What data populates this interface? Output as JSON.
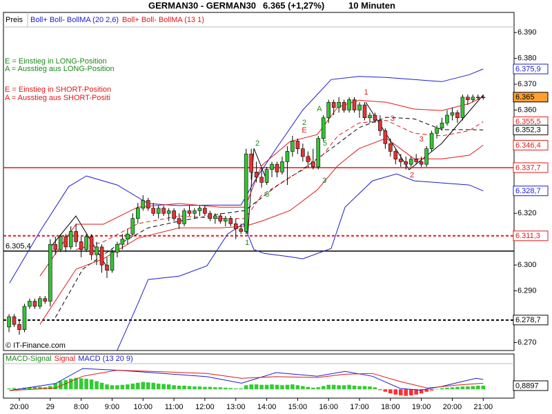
{
  "chart_data": {
    "type": "candlestick",
    "title": "GERMAN30 - GERMAN30",
    "quote": "6.365 (+1,27%)",
    "interval": "10 Minuten",
    "price_legend": "Preis",
    "copyright": "© IT-Finance.com",
    "up_color": "#33c433",
    "down_color": "#e23434",
    "categories": [
      null,
      null,
      "20:00",
      null,
      null,
      null,
      null,
      null,
      "29",
      null,
      null,
      null,
      null,
      null,
      "8:00",
      null,
      null,
      null,
      null,
      null,
      "9:00",
      null,
      null,
      null,
      null,
      null,
      "10:00",
      null,
      null,
      null,
      null,
      null,
      "11:00",
      null,
      null,
      null,
      null,
      null,
      "12:00",
      null,
      null,
      null,
      null,
      null,
      "13:00",
      null,
      null,
      null,
      null,
      null,
      "14:00",
      null,
      null,
      null,
      null,
      null,
      "15:00",
      null,
      null,
      null,
      null,
      null,
      "16:00",
      null,
      null,
      null,
      null,
      null,
      "17:00",
      null,
      null,
      null,
      null,
      null,
      "18:00",
      null,
      null,
      null,
      null,
      null,
      "19:00",
      null,
      null,
      null,
      null,
      null,
      "20:00",
      null,
      null,
      null,
      null,
      null,
      "21:00"
    ],
    "open": [
      6276,
      6280,
      6277,
      6275,
      6284,
      6286,
      6284,
      6287,
      6286,
      6308,
      6306,
      6311,
      6307,
      6313,
      6309,
      6306,
      6311,
      6304,
      6307,
      6300,
      6298,
      6305,
      6308,
      6310,
      6312,
      6318,
      6322,
      6325,
      6322,
      6320,
      6322,
      6320,
      6321,
      6318,
      6316,
      6321,
      6320,
      6321,
      6322,
      6320,
      6318,
      6319,
      6317,
      6318,
      6316,
      6314,
      6313,
      6343,
      6336,
      6334,
      6332,
      6337,
      6339,
      6336,
      6340,
      6344,
      6348,
      6345,
      6342,
      6340,
      6338,
      6349,
      6357,
      6363,
      6361,
      6363,
      6360,
      6364,
      6360,
      6362,
      6357,
      6358,
      6356,
      6352,
      6347,
      6344,
      6341,
      6340,
      6339,
      6341,
      6340,
      6339,
      6345,
      6351,
      6353,
      6355,
      6358,
      6359,
      6357,
      6365,
      6364,
      6365,
      6365
    ],
    "high": [
      6281,
      6281,
      6279,
      6285,
      6287,
      6287,
      6288,
      6288,
      6310,
      6311,
      6312,
      6312,
      6315,
      6316,
      6311,
      6312,
      6312,
      6309,
      6308,
      6303,
      6306,
      6309,
      6312,
      6314,
      6320,
      6324,
      6327,
      6326,
      6324,
      6323,
      6323,
      6322,
      6322,
      6320,
      6322,
      6323,
      6322,
      6323,
      6323,
      6321,
      6320,
      6320,
      6319,
      6319,
      6318,
      6316,
      6345,
      6345,
      6340,
      6338,
      6338,
      6340,
      6340,
      6342,
      6346,
      6350,
      6349,
      6347,
      6344,
      6345,
      6350,
      6358,
      6364,
      6364,
      6365,
      6364,
      6365,
      6365,
      6363,
      6363,
      6359,
      6359,
      6358,
      6353,
      6349,
      6345,
      6343,
      6342,
      6342,
      6343,
      6342,
      6346,
      6352,
      6354,
      6357,
      6360,
      6361,
      6360,
      6366,
      6366,
      6366,
      6366,
      6366
    ],
    "low": [
      6274,
      6276,
      6273,
      6274,
      6283,
      6283,
      6283,
      6285,
      6284,
      6304,
      6305,
      6305,
      6306,
      6307,
      6303,
      6305,
      6302,
      6300,
      6297,
      6295,
      6297,
      6303,
      6306,
      6308,
      6311,
      6316,
      6321,
      6321,
      6319,
      6318,
      6319,
      6317,
      6317,
      6314,
      6315,
      6319,
      6318,
      6319,
      6319,
      6317,
      6316,
      6316,
      6315,
      6315,
      6310,
      6312,
      6312,
      6333,
      6332,
      6330,
      6331,
      6334,
      6334,
      6335,
      6331,
      6342,
      6343,
      6340,
      6338,
      6337,
      6337,
      6348,
      6355,
      6358,
      6359,
      6359,
      6359,
      6359,
      6357,
      6356,
      6355,
      6355,
      6350,
      6345,
      6342,
      6339,
      6338,
      6337,
      6338,
      6339,
      6338,
      6338,
      6344,
      6349,
      6352,
      6354,
      6356,
      6355,
      6356,
      6362,
      6363,
      6364,
      6364
    ],
    "close": [
      6280,
      6277,
      6275,
      6284,
      6286,
      6284,
      6287,
      6286,
      6308,
      6306,
      6311,
      6307,
      6313,
      6309,
      6306,
      6311,
      6304,
      6307,
      6300,
      6298,
      6305,
      6308,
      6310,
      6312,
      6318,
      6322,
      6325,
      6322,
      6320,
      6322,
      6320,
      6321,
      6318,
      6316,
      6321,
      6320,
      6321,
      6322,
      6320,
      6318,
      6319,
      6317,
      6318,
      6316,
      6314,
      6313,
      6343,
      6336,
      6334,
      6332,
      6337,
      6339,
      6336,
      6340,
      6344,
      6348,
      6345,
      6342,
      6340,
      6338,
      6349,
      6357,
      6363,
      6361,
      6363,
      6360,
      6364,
      6360,
      6362,
      6357,
      6358,
      6356,
      6352,
      6347,
      6344,
      6341,
      6340,
      6339,
      6341,
      6340,
      6339,
      6345,
      6351,
      6353,
      6355,
      6358,
      6359,
      6357,
      6365,
      6364,
      6365,
      6365,
      6365
    ],
    "ylim": [
      6266.9,
      6397.8
    ],
    "yticks": [
      {
        "value": 6390,
        "label": "6.390"
      },
      {
        "value": 6380,
        "label": "6.380"
      },
      {
        "value": 6370,
        "label": "6.370"
      },
      {
        "value": 6360,
        "label": "6.360"
      },
      {
        "value": 6320,
        "label": "6.320"
      },
      {
        "value": 6300,
        "label": "6.300"
      },
      {
        "value": 6290,
        "label": "6.290"
      },
      {
        "value": 6270,
        "label": "6.270"
      }
    ],
    "overlays": [
      {
        "name": "Boll+ Boll- BollMA (20 2,6)",
        "color": "#1c1cd0",
        "lines": [
          {
            "x": [
              0.1,
              6,
              11.6,
              15,
              21,
              27,
              33,
              38.4,
              45,
              47.8,
              51.8,
              57,
              62.5,
              67.9,
              73.2,
              78.6,
              84,
              89.3,
              92
            ],
            "values": [
              6293,
              6313,
              6330.4,
              6334.5,
              6331,
              6323.8,
              6323,
              6323.2,
              6323.2,
              6333,
              6345,
              6360,
              6371.8,
              6373,
              6372.6,
              6371.8,
              6371,
              6373.7,
              6375.9
            ]
          },
          {
            "x": [
              21,
              25,
              27,
              33,
              38.4,
              42.4,
              45.5,
              47.5,
              49.5,
              54.5,
              57,
              62.5,
              65.2,
              70.5,
              75.2,
              78.6,
              84,
              89.3,
              92
            ],
            "values": [
              6267,
              6285,
              6294.4,
              6295.7,
              6299.7,
              6312,
              6316,
              6306,
              6304.5,
              6303.2,
              6302.4,
              6306.4,
              6322.4,
              6332.6,
              6335.3,
              6332.6,
              6331.8,
              6331,
              6328.7
            ]
          },
          {
            "x": [
              9,
              14.3,
              21,
              27,
              33,
              41,
              45.8,
              51.8,
              57,
              62.5,
              67.9,
              73.2,
              78.6,
              84,
              89.3,
              92
            ],
            "values": [
              6279.7,
              6298.4,
              6307.7,
              6314.4,
              6317,
              6319.8,
              6321.1,
              6330.4,
              6337.1,
              6345,
              6353.2,
              6357.2,
              6356.6,
              6352.4,
              6352.4,
              6352.3
            ],
            "color": "#000000",
            "dashed": true
          }
        ]
      },
      {
        "name": "Boll+ Boll- BollMA (13 1)",
        "color": "#e01818",
        "lines": [
          {
            "x": [
              6,
              13,
              18.3,
              25,
              33,
              41,
              45.8,
              49,
              54.5,
              59.8,
              63.8,
              67.9,
              73.2,
              78.6,
              84,
              89.3,
              92
            ],
            "values": [
              6295.7,
              6315.8,
              6315.8,
              6322.4,
              6323.8,
              6322.4,
              6322.4,
              6338.5,
              6347.8,
              6350.5,
              6361.2,
              6363.8,
              6363,
              6360.4,
              6359.8,
              6362.5,
              6365.2
            ]
          },
          {
            "x": [
              6,
              13,
              18.3,
              25,
              33,
              41,
              45.8,
              49,
              54.5,
              59.8,
              63.8,
              67.9,
              73.2,
              78.6,
              84,
              89.3,
              92
            ],
            "values": [
              6277,
              6298.4,
              6302.4,
              6310.4,
              6314.4,
              6314.4,
              6315,
              6317,
              6321.1,
              6329.1,
              6338.5,
              6345.1,
              6349.1,
              6341.1,
              6341.1,
              6342.5,
              6346.4
            ]
          },
          {
            "x": [
              13,
              18.3,
              25,
              33,
              41,
              45.8,
              49,
              54.5,
              59.8,
              63.8,
              67.9,
              73.2,
              78.6,
              84,
              89.3,
              92
            ],
            "values": [
              6306,
              6309,
              6316,
              6319,
              6318,
              6318,
              6327,
              6334,
              6340,
              6350,
              6355,
              6356,
              6351,
              6350,
              6352,
              6355.5
            ],
            "dashed": true
          }
        ]
      }
    ],
    "levels": [
      {
        "value": 6337.7,
        "color": "#e01818",
        "dashed": false
      },
      {
        "value": 6311.3,
        "color": "#e01818",
        "dashed": true
      },
      {
        "value": 6278.7,
        "color": "#000000",
        "dashed": true
      },
      {
        "value": 6305.4,
        "color": "#000000",
        "dashed": false,
        "label": "6.305,4"
      }
    ],
    "price_labels": [
      {
        "value": 6375.9,
        "label": "6.375,9",
        "color": "#1c1cd0"
      },
      {
        "value": 6365,
        "label": "6.365",
        "color": "#000000",
        "background": "#ffa030"
      },
      {
        "value": 6355.5,
        "label": "6.355,5",
        "color": "#e01818"
      },
      {
        "value": 6352.3,
        "label": "6.352,3",
        "color": "#000000"
      },
      {
        "value": 6346.4,
        "label": "6.346,4",
        "color": "#e01818"
      },
      {
        "value": 6337.7,
        "label": "6.337,7",
        "color": "#e01818"
      },
      {
        "value": 6328.7,
        "label": "6.328,7",
        "color": "#1c1cd0"
      },
      {
        "value": 6311.3,
        "label": "6.311,3",
        "color": "#e01818"
      },
      {
        "value": 6278.7,
        "label": "6.278,7",
        "color": "#000000"
      }
    ],
    "markers": [
      {
        "text": "1",
        "x": 46.2,
        "y": 6308.5,
        "color": "#1a8a1a"
      },
      {
        "text": "2",
        "x": 48.2,
        "y": 6347,
        "color": "#1a8a1a"
      },
      {
        "text": "3",
        "x": 50.1,
        "y": 6327.2,
        "color": "#1a8a1a"
      },
      {
        "text": "2",
        "x": 57.3,
        "y": 6355,
        "color": "#1a8a1a"
      },
      {
        "text": "E",
        "x": 57.3,
        "y": 6352.1,
        "color": "#e01818"
      },
      {
        "text": "A",
        "x": 58.2,
        "y": 6341.1,
        "color": "#e01818"
      },
      {
        "text": "A",
        "x": 60.2,
        "y": 6360.4,
        "color": "#1a8a1a"
      },
      {
        "text": "5",
        "x": 61.3,
        "y": 6347,
        "color": "#1a8a1a"
      },
      {
        "text": "3",
        "x": 61.2,
        "y": 6332.6,
        "color": "#1a8a1a"
      },
      {
        "text": "1",
        "x": 69.3,
        "y": 6366.8,
        "color": "#e01818"
      },
      {
        "text": "3",
        "x": 74.4,
        "y": 6356.6,
        "color": "#e01818"
      },
      {
        "text": "2",
        "x": 78.2,
        "y": 6334.7,
        "color": "#e01818"
      },
      {
        "text": "3",
        "x": 80,
        "y": 6348.6,
        "color": "#e01818"
      }
    ],
    "notes": [
      {
        "text": "E = Einstieg in LONG-Position",
        "color": "#1a8a1a"
      },
      {
        "text": "A = Ausstieg aus LONG-Position",
        "color": "#1a8a1a"
      },
      {
        "text": "E = Einstieg in SHORT-Position",
        "color": "#e01818"
      },
      {
        "text": "A = Ausstieg aus SHORT-Positi",
        "color": "#e01818"
      }
    ],
    "macd": {
      "type": "bar",
      "legend": [
        {
          "text": "MACD-Signal",
          "color": "#1a8a1a"
        },
        {
          "text": "Signal",
          "color": "#e01818"
        },
        {
          "text": "MACD (13 20 9)",
          "color": "#1c1cd0"
        }
      ],
      "ylim": [
        -2,
        8
      ],
      "up_color": "#33cc33",
      "down_color": "#ff3030",
      "values": [
        0.2,
        0.3,
        0.2,
        0.4,
        0.5,
        0.6,
        0.6,
        0.5,
        0.8,
        1.5,
        2.0,
        2.3,
        2.6,
        2.8,
        2.7,
        2.6,
        2.4,
        2.0,
        1.6,
        1.2,
        1.0,
        1.0,
        1.1,
        1.2,
        1.4,
        1.6,
        1.8,
        1.7,
        1.6,
        1.4,
        1.3,
        1.2,
        1.0,
        0.9,
        0.9,
        0.8,
        0.7,
        0.7,
        0.6,
        0.6,
        0.5,
        0.5,
        0.4,
        0.3,
        0.2,
        0.2,
        1.0,
        1.2,
        1.2,
        1.1,
        1.1,
        1.2,
        1.1,
        1.0,
        1.1,
        1.2,
        1.0,
        0.8,
        0.6,
        0.4,
        0.5,
        0.8,
        1.1,
        1.1,
        1.0,
        1.0,
        1.1,
        0.9,
        0.8,
        0.8,
        0.7,
        0.5,
        -0.2,
        -0.6,
        -1.0,
        -1.3,
        -1.5,
        -1.6,
        -1.5,
        -1.3,
        -1.0,
        -0.6,
        -0.3,
        0.1,
        0.3,
        0.4,
        0.5,
        0.6,
        0.7,
        0.7,
        0.8,
        0.9,
        0.9
      ],
      "lines": [
        {
          "x": [
            0.1,
            9,
            14.3,
            21,
            27.7,
            38.4,
            45.1,
            51.8,
            59.8,
            65.2,
            70.5,
            75.9,
            79.9,
            83.9,
            90.6,
            92
          ],
          "values": [
            -0.3,
            1.4,
            5.1,
            4.7,
            4.1,
            3.1,
            1.5,
            4.1,
            3.2,
            4.4,
            3.2,
            0.2,
            -0.2,
            0.7,
            2.7,
            2.4
          ],
          "color": "#1c1cd0"
        },
        {
          "x": [
            0.1,
            9,
            14.3,
            21,
            27.7,
            38.4,
            45.1,
            51.8,
            59.8,
            65.2,
            70.5,
            75.9,
            81.2,
            86.6,
            92
          ],
          "values": [
            -0.3,
            0.3,
            3.2,
            4.7,
            4.4,
            3.9,
            2.7,
            3.1,
            2.9,
            3.7,
            3.9,
            1.9,
            0.3,
            1.0,
            1.5
          ],
          "color": "#e01818"
        }
      ],
      "value_label": {
        "value": 0.8897,
        "label": "0,8897"
      }
    }
  }
}
